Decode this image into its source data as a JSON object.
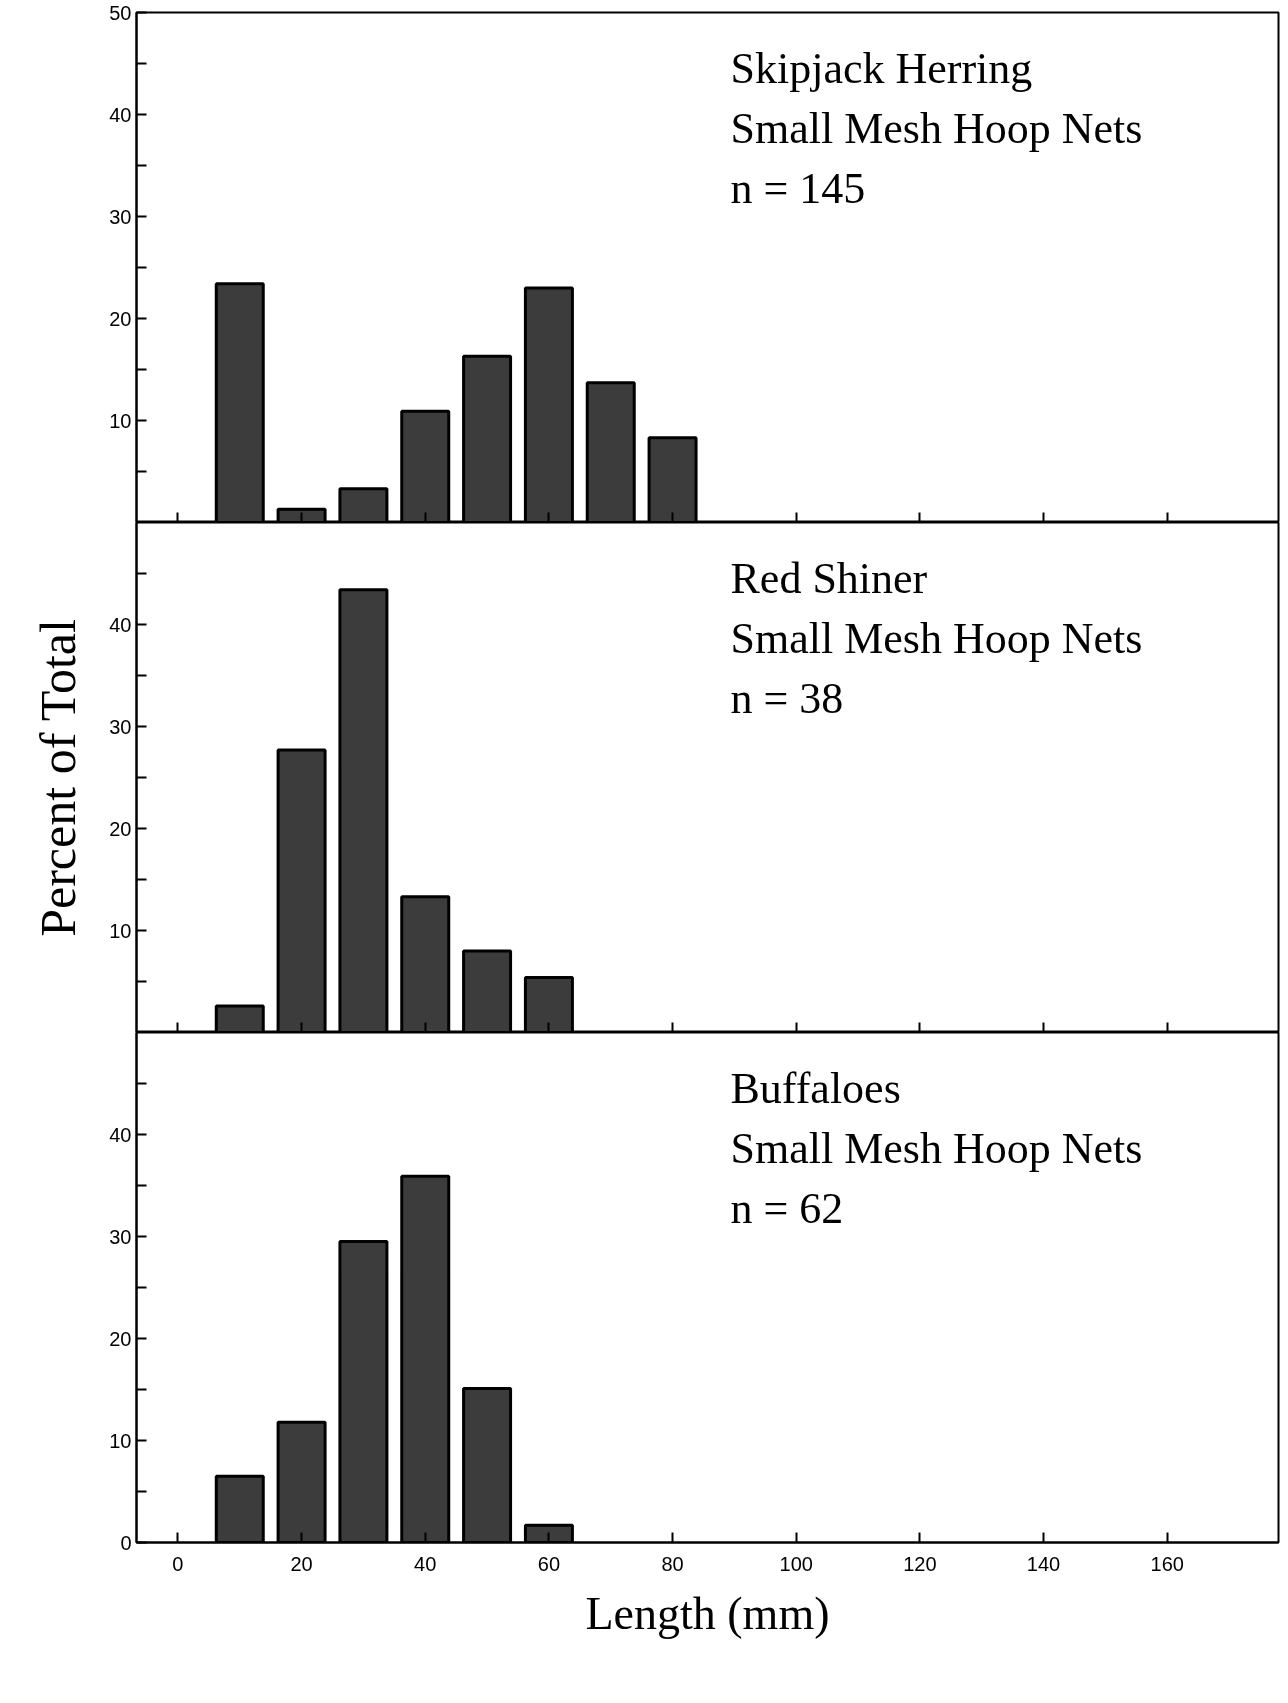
{
  "chart_data": [
    {
      "type": "bar",
      "x": [
        10,
        20,
        30,
        40,
        50,
        60,
        70,
        80
      ],
      "values": [
        23.4,
        1.3,
        3.3,
        10.9,
        16.3,
        23.0,
        13.7,
        8.3
      ],
      "color": "#3c3c3c",
      "annotations": [
        "Skipjack Herring",
        "Small Mesh Hoop Nets",
        "n = 145"
      ],
      "xlim": [
        -6.7,
        178
      ],
      "xticks": [
        0,
        20,
        40,
        60,
        80,
        100,
        120,
        140,
        160
      ],
      "ylim": [
        0,
        50
      ],
      "yticks": [
        {
          "value": 5,
          "label": null
        },
        10,
        {
          "value": 15,
          "label": null
        },
        20,
        {
          "value": 25,
          "label": null
        },
        30,
        {
          "value": 35,
          "label": null
        },
        40,
        {
          "value": 45,
          "label": null
        },
        50
      ],
      "tick_labels": "y",
      "grid": false
    },
    {
      "type": "bar",
      "x": [
        10,
        20,
        30,
        40,
        50,
        60
      ],
      "values": [
        2.6,
        27.7,
        43.4,
        13.3,
        8.0,
        5.4
      ],
      "color": "#3c3c3c",
      "ylabel": "Percent of Total",
      "annotations": [
        "Red Shiner",
        "Small Mesh Hoop Nets",
        "n = 38"
      ],
      "xlim": [
        -6.7,
        178
      ],
      "xticks": [
        0,
        20,
        40,
        60,
        80,
        100,
        120,
        140,
        160
      ],
      "ylim": [
        0,
        50
      ],
      "yticks": [
        {
          "value": 5,
          "label": null
        },
        10,
        {
          "value": 15,
          "label": null
        },
        20,
        {
          "value": 25,
          "label": null
        },
        30,
        {
          "value": 35,
          "label": null
        },
        40,
        {
          "value": 45,
          "label": null
        }
      ],
      "tick_labels": "y",
      "grid": false
    },
    {
      "type": "bar",
      "x": [
        10,
        20,
        30,
        40,
        50,
        60
      ],
      "values": [
        6.5,
        11.8,
        29.5,
        35.9,
        15.1,
        1.7
      ],
      "color": "#3c3c3c",
      "xlabel": "Length (mm)",
      "annotations": [
        "Buffaloes",
        "Small Mesh Hoop Nets",
        "n = 62"
      ],
      "xlim": [
        -6.7,
        178
      ],
      "xticks": [
        0,
        20,
        40,
        60,
        80,
        100,
        120,
        140,
        160
      ],
      "ylim": [
        0,
        50
      ],
      "yticks": [
        0,
        {
          "value": 5,
          "label": null
        },
        10,
        {
          "value": 15,
          "label": null
        },
        20,
        {
          "value": 25,
          "label": null
        },
        30,
        {
          "value": 35,
          "label": null
        },
        40,
        {
          "value": 45,
          "label": null
        }
      ],
      "grid": false
    }
  ]
}
